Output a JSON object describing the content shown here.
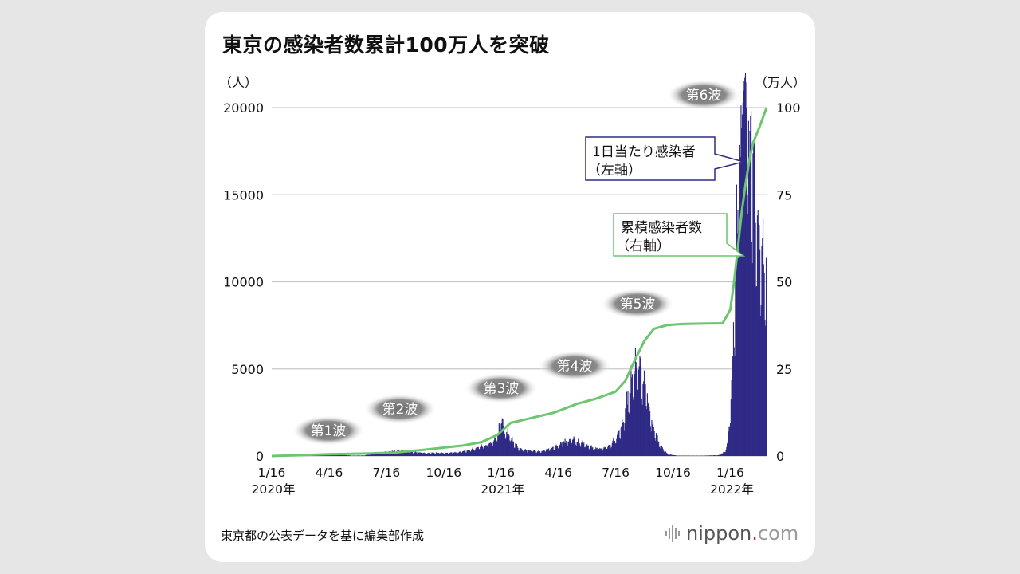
{
  "title": "東京の感染者数累計100万人を突破",
  "source_note": "東京都の公表データを基に編集部作成",
  "logo": {
    "name": "nippon",
    "dot": ".",
    "suffix": "com",
    "icon": "nippon-logo-icon"
  },
  "colors": {
    "bars": "#2e2a86",
    "cumulative_line": "#6cc56f",
    "grid": "#c8c8c8",
    "callout_bar_border": "#2e2a86",
    "callout_line_border": "#6cc56f",
    "wave_label_bg": "#7a7a7a"
  },
  "chart_data": {
    "type": "bar+line",
    "title": "東京の感染者数累計100万人を突破",
    "left_axis": {
      "unit_label": "（人）",
      "ticks": [
        0,
        5000,
        10000,
        15000,
        20000
      ],
      "range": [
        0,
        20000
      ]
    },
    "right_axis": {
      "unit_label": "（万人）",
      "ticks": [
        0,
        25,
        50,
        75,
        100
      ],
      "range": [
        0,
        100
      ]
    },
    "x_axis": {
      "ticks": [
        {
          "label": "1/16",
          "month": 0,
          "year": "2020年"
        },
        {
          "label": "4/16",
          "month": 3
        },
        {
          "label": "7/16",
          "month": 6
        },
        {
          "label": "10/16",
          "month": 9
        },
        {
          "label": "1/16",
          "month": 12,
          "year": "2021年"
        },
        {
          "label": "4/16",
          "month": 15
        },
        {
          "label": "7/16",
          "month": 18
        },
        {
          "label": "10/16",
          "month": 21
        },
        {
          "label": "1/16",
          "month": 24,
          "year": "2022年"
        }
      ],
      "range_months": [
        0,
        25.9
      ]
    },
    "series": [
      {
        "name": "1日当たり感染者（左軸）",
        "axis": "left",
        "style": "bars",
        "points_month_value": [
          [
            0,
            0
          ],
          [
            2.0,
            10
          ],
          [
            2.6,
            60
          ],
          [
            3.0,
            150
          ],
          [
            3.4,
            120
          ],
          [
            3.7,
            60
          ],
          [
            4.2,
            20
          ],
          [
            4.8,
            30
          ],
          [
            5.4,
            150
          ],
          [
            6.2,
            280
          ],
          [
            6.8,
            320
          ],
          [
            7.4,
            220
          ],
          [
            8.0,
            170
          ],
          [
            8.6,
            190
          ],
          [
            9.2,
            180
          ],
          [
            9.8,
            230
          ],
          [
            10.4,
            360
          ],
          [
            10.8,
            500
          ],
          [
            11.2,
            620
          ],
          [
            11.6,
            850
          ],
          [
            11.85,
            1400
          ],
          [
            12.0,
            2447
          ],
          [
            12.15,
            1400
          ],
          [
            12.35,
            1300
          ],
          [
            12.6,
            800
          ],
          [
            12.9,
            450
          ],
          [
            13.4,
            300
          ],
          [
            14.0,
            270
          ],
          [
            14.6,
            450
          ],
          [
            15.0,
            600
          ],
          [
            15.4,
            850
          ],
          [
            15.7,
            1000
          ],
          [
            15.9,
            900
          ],
          [
            16.3,
            700
          ],
          [
            16.8,
            450
          ],
          [
            17.2,
            400
          ],
          [
            17.6,
            550
          ],
          [
            18.0,
            1000
          ],
          [
            18.3,
            1700
          ],
          [
            18.55,
            3000
          ],
          [
            18.8,
            4300
          ],
          [
            19.0,
            5042
          ],
          [
            19.2,
            5500
          ],
          [
            19.4,
            4500
          ],
          [
            19.6,
            3500
          ],
          [
            19.9,
            1800
          ],
          [
            20.3,
            600
          ],
          [
            20.7,
            100
          ],
          [
            21.2,
            20
          ],
          [
            22.5,
            15
          ],
          [
            23.4,
            50
          ],
          [
            23.7,
            250
          ],
          [
            23.85,
            800
          ],
          [
            24.0,
            3000
          ],
          [
            24.2,
            8500
          ],
          [
            24.35,
            14000
          ],
          [
            24.5,
            17000
          ],
          [
            24.6,
            19500
          ],
          [
            24.7,
            21576
          ],
          [
            24.8,
            20000
          ],
          [
            24.95,
            18500
          ],
          [
            25.1,
            17500
          ],
          [
            25.3,
            15000
          ],
          [
            25.5,
            13000
          ],
          [
            25.7,
            11000
          ],
          [
            25.9,
            10000
          ]
        ]
      },
      {
        "name": "累積感染者数（右軸）",
        "axis": "right",
        "style": "line",
        "points_month_value": [
          [
            0,
            0
          ],
          [
            3.0,
            0.5
          ],
          [
            5.0,
            0.7
          ],
          [
            6.5,
            1.0
          ],
          [
            8.0,
            1.8
          ],
          [
            10.0,
            3.0
          ],
          [
            11.0,
            4.0
          ],
          [
            11.8,
            6.0
          ],
          [
            12.5,
            9.5
          ],
          [
            13.5,
            10.8
          ],
          [
            14.8,
            12.5
          ],
          [
            16.0,
            15.0
          ],
          [
            17.0,
            16.5
          ],
          [
            18.0,
            18.5
          ],
          [
            18.5,
            21.5
          ],
          [
            19.0,
            27.5
          ],
          [
            19.5,
            33.0
          ],
          [
            20.0,
            36.5
          ],
          [
            20.7,
            37.6
          ],
          [
            21.5,
            37.9
          ],
          [
            22.5,
            38.0
          ],
          [
            23.6,
            38.1
          ],
          [
            24.0,
            42.0
          ],
          [
            24.2,
            50.0
          ],
          [
            24.4,
            60.0
          ],
          [
            24.6,
            70.0
          ],
          [
            24.8,
            78.0
          ],
          [
            25.0,
            85.0
          ],
          [
            25.2,
            90.0
          ],
          [
            25.5,
            94.0
          ],
          [
            25.9,
            100.0
          ]
        ]
      }
    ],
    "wave_labels": [
      {
        "text": "第1波",
        "month": 2.4
      },
      {
        "text": "第2波",
        "month": 5.5
      },
      {
        "text": "第3波",
        "month": 9.8
      },
      {
        "text": "第4波",
        "month": 13.3
      },
      {
        "text": "第5波",
        "month": 16.8
      },
      {
        "text": "第6波",
        "month": 22.2
      }
    ],
    "callouts": [
      {
        "lines": [
          "1日当たり感染者",
          "（左軸）"
        ],
        "series": "bars"
      },
      {
        "lines": [
          "累積感染者数",
          "（右軸）"
        ],
        "series": "line"
      }
    ],
    "grid": true
  }
}
